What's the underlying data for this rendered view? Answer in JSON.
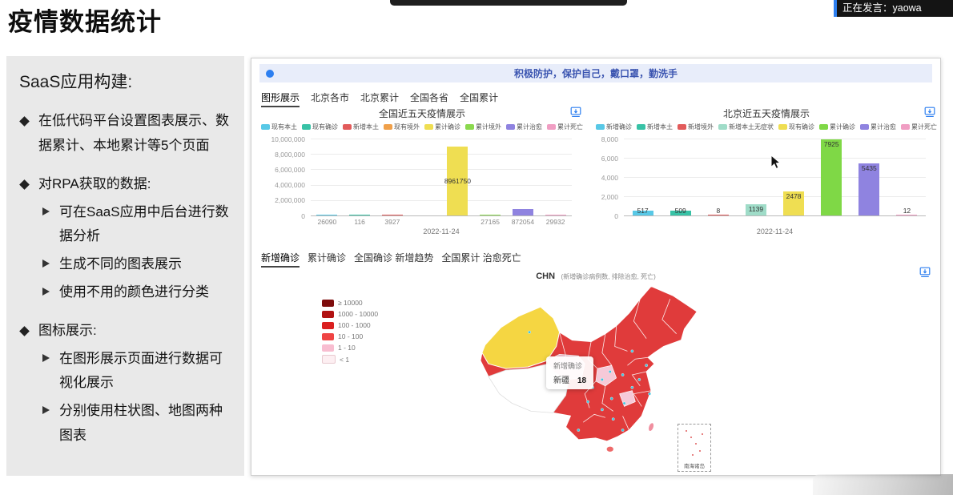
{
  "page": {
    "title": "疫情数据统计",
    "speaker_badge": "正在发言：yaowa"
  },
  "sidebar": {
    "heading": "SaaS应用构建:",
    "items": [
      {
        "level": 1,
        "text": "在低代码平台设置图表展示、数据累计、本地累计等5个页面"
      },
      {
        "level": 1,
        "text": "对RPA获取的数据:"
      },
      {
        "level": 2,
        "text": "可在SaaS应用中后台进行数据分析"
      },
      {
        "level": 2,
        "text": "生成不同的图表展示"
      },
      {
        "level": 2,
        "text": "使用不用的颜色进行分类"
      },
      {
        "level": 1,
        "text": "图标展示:"
      },
      {
        "level": 2,
        "text": "在图形展示页面进行数据可视化展示"
      },
      {
        "level": 2,
        "text": "分别使用柱状图、地图两种图表"
      }
    ]
  },
  "dashboard": {
    "banner": {
      "text": "积极防护，保护自己，戴口罩，勤洗手"
    },
    "tabs": [
      {
        "label": "图形展示",
        "active": true
      },
      {
        "label": "北京各市",
        "active": false
      },
      {
        "label": "北京累计",
        "active": false
      },
      {
        "label": "全国各省",
        "active": false
      },
      {
        "label": "全国累计",
        "active": false
      }
    ],
    "map_tabs": [
      {
        "label": "新增确诊",
        "active": true
      },
      {
        "label": "累计确诊",
        "active": false
      },
      {
        "label": "全国确诊 新增趋势",
        "active": false
      },
      {
        "label": "全国累计 治愈死亡",
        "active": false
      }
    ]
  },
  "chart_data": [
    {
      "id": "national-five-day",
      "type": "bar",
      "title": "全国近五天疫情展示",
      "x_category": "2022-11-24",
      "ylim": [
        0,
        10000000
      ],
      "yticks": [
        "10,000,000",
        "8,000,000",
        "6,000,000",
        "4,000,000",
        "2,000,000",
        "0"
      ],
      "label_mode": "below",
      "series": [
        {
          "name": "现有本土",
          "color": "#58c8e6",
          "value": 26090
        },
        {
          "name": "现有确诊",
          "color": "#38c2a6",
          "value": 116
        },
        {
          "name": "新增本土",
          "color": "#e25b5b",
          "value": 3927
        },
        {
          "name": "现有境外",
          "color": "#f0a04a",
          "value": null
        },
        {
          "name": "累计确诊",
          "color": "#efde52",
          "value": 8961750,
          "label_inside": true
        },
        {
          "name": "累计境外",
          "color": "#8bd94e",
          "value": 27165
        },
        {
          "name": "累计治愈",
          "color": "#8f83e0",
          "value": 872054
        },
        {
          "name": "累计死亡",
          "color": "#f09ec3",
          "value": 29932
        }
      ]
    },
    {
      "id": "beijing-five-day",
      "type": "bar",
      "title": "北京近五天疫情展示",
      "x_category": "2022-11-24",
      "ylim": [
        0,
        8000
      ],
      "yticks": [
        "8,000",
        "6,000",
        "4,000",
        "2,000",
        "0"
      ],
      "label_mode": "onbar",
      "series": [
        {
          "name": "新增确诊",
          "color": "#58c8e6",
          "value": 517
        },
        {
          "name": "新增本土",
          "color": "#38c2a6",
          "value": 509
        },
        {
          "name": "新增境外",
          "color": "#e25b5b",
          "value": 8
        },
        {
          "name": "新增本土无症状",
          "color": "#9fdcc8",
          "value": 1139
        },
        {
          "name": "现有确诊",
          "color": "#efde52",
          "value": 2478
        },
        {
          "name": "累计确诊",
          "color": "#7fd846",
          "value": 7925
        },
        {
          "name": "累计治愈",
          "color": "#8f83e0",
          "value": 5435
        },
        {
          "name": "累计死亡",
          "color": "#f09ec3",
          "value": 12
        }
      ]
    },
    {
      "id": "china-map",
      "type": "heatmap",
      "title_main": "CHN",
      "title_sub": "(新增确诊病例数, 排除治愈, 死亡)",
      "legend": [
        {
          "label": "≥ 10000",
          "color": "#7e0c0c"
        },
        {
          "label": "1000 - 10000",
          "color": "#b11212"
        },
        {
          "label": "100 - 1000",
          "color": "#da1f1f"
        },
        {
          "label": "10 - 100",
          "color": "#ef4444"
        },
        {
          "label": "1 - 10",
          "color": "#f8bdd0"
        },
        {
          "label": "< 1",
          "color": "#fdeff2"
        }
      ],
      "tooltip": {
        "title": "新增确诊",
        "name": "新疆",
        "value": "18"
      },
      "inset_label": "南海诸岛"
    }
  ]
}
